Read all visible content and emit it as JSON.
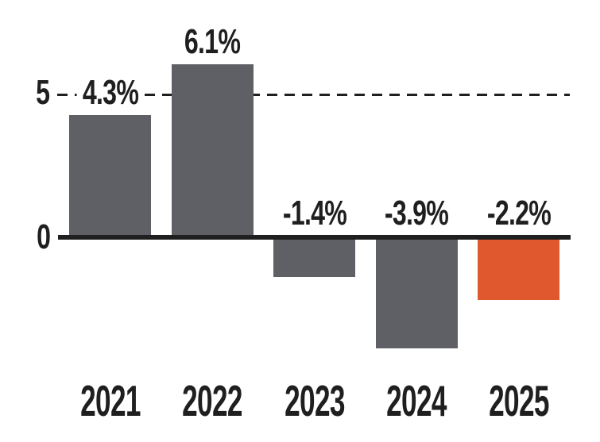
{
  "chart_data": {
    "type": "bar",
    "title": "",
    "categories": [
      "2021",
      "2022",
      "2023",
      "2024",
      "2025"
    ],
    "values": [
      4.3,
      6.1,
      -1.4,
      -3.9,
      -2.2
    ],
    "value_labels": [
      "4.3%",
      "6.1%",
      "-1.4%",
      "-3.9%",
      "-2.2%"
    ],
    "xlabel": "",
    "ylabel": "",
    "yticks": [
      "5",
      "0"
    ],
    "ytick_values": [
      5,
      0
    ],
    "ylim": [
      -5,
      7
    ],
    "baseline_at": 0,
    "dashed_reference_line_at": 5,
    "grid": "dashed horizontal line at y=5 only",
    "legend": null,
    "colors": {
      "bar_default": "#5F6065",
      "bar_highlight": "#E0592E",
      "highlight_index": 4,
      "axis_line": "#1F1F1F",
      "text": "#1F1F1F",
      "background": "#FFFFFF"
    }
  }
}
